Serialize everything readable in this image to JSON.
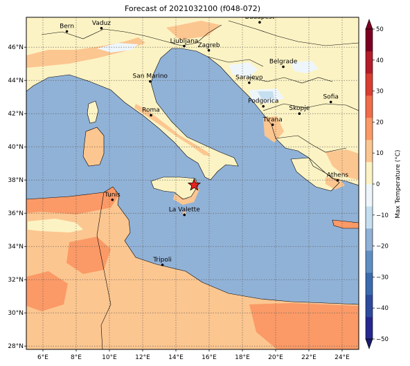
{
  "title": "Forecast of 2021032100 (f048-072)",
  "map": {
    "lon_range": [
      5,
      25
    ],
    "lat_range": [
      27.8,
      47.8
    ],
    "x_ticks": [
      {
        "value": 6,
        "label": "6°E"
      },
      {
        "value": 8,
        "label": "8°E"
      },
      {
        "value": 10,
        "label": "10°E"
      },
      {
        "value": 12,
        "label": "12°E"
      },
      {
        "value": 14,
        "label": "14°E"
      },
      {
        "value": 16,
        "label": "16°E"
      },
      {
        "value": 18,
        "label": "18°E"
      },
      {
        "value": 20,
        "label": "20°E"
      },
      {
        "value": 22,
        "label": "22°E"
      },
      {
        "value": 24,
        "label": "24°E"
      }
    ],
    "y_ticks": [
      {
        "value": 28,
        "label": "28°N"
      },
      {
        "value": 30,
        "label": "30°N"
      },
      {
        "value": 32,
        "label": "32°N"
      },
      {
        "value": 34,
        "label": "34°N"
      },
      {
        "value": 36,
        "label": "36°N"
      },
      {
        "value": 38,
        "label": "38°N"
      },
      {
        "value": 40,
        "label": "40°N"
      },
      {
        "value": 42,
        "label": "42°N"
      },
      {
        "value": 44,
        "label": "44°N"
      },
      {
        "value": 46,
        "label": "46°N"
      }
    ],
    "grid": true,
    "sea_color": "#91b2d7",
    "cities": [
      {
        "name": "Bern",
        "lon": 7.44,
        "lat": 46.95
      },
      {
        "name": "Vaduz",
        "lon": 9.52,
        "lat": 47.14
      },
      {
        "name": "Budapest",
        "lon": 19.04,
        "lat": 47.5
      },
      {
        "name": "Ljubljana",
        "lon": 14.5,
        "lat": 46.06
      },
      {
        "name": "Zagreb",
        "lon": 15.98,
        "lat": 45.81
      },
      {
        "name": "Belgrade",
        "lon": 20.46,
        "lat": 44.82
      },
      {
        "name": "San Marino",
        "lon": 12.45,
        "lat": 43.94
      },
      {
        "name": "Sarajevo",
        "lon": 18.41,
        "lat": 43.86
      },
      {
        "name": "Sofia",
        "lon": 23.32,
        "lat": 42.7
      },
      {
        "name": "Podgorica",
        "lon": 19.26,
        "lat": 42.44
      },
      {
        "name": "Skopje",
        "lon": 21.43,
        "lat": 42.0
      },
      {
        "name": "Roma",
        "lon": 12.5,
        "lat": 41.9
      },
      {
        "name": "Tirana",
        "lon": 19.82,
        "lat": 41.33
      },
      {
        "name": "Athens",
        "lon": 23.73,
        "lat": 37.98
      },
      {
        "name": "Tunis",
        "lon": 10.18,
        "lat": 36.81
      },
      {
        "name": "La Valette",
        "lon": 14.51,
        "lat": 35.9
      },
      {
        "name": "Tripoli",
        "lon": 13.19,
        "lat": 32.89
      }
    ],
    "star": {
      "lon": 15.1,
      "lat": 37.7
    }
  },
  "colorbar": {
    "label": "Max Temperature (°C)",
    "ticks": [
      "50",
      "40",
      "30",
      "20",
      "10",
      "0",
      "−10",
      "−20",
      "−30",
      "−40",
      "−50"
    ],
    "colors": [
      "#26288f",
      "#2c4b9e",
      "#3b6aae",
      "#5f8fc2",
      "#91b2d7",
      "#c6dff0",
      "#eef6fb",
      "#fcf3c4",
      "#fcc690",
      "#fb9a67",
      "#f16c49",
      "#d93e30",
      "#b31d2a",
      "#7d0023"
    ]
  }
}
